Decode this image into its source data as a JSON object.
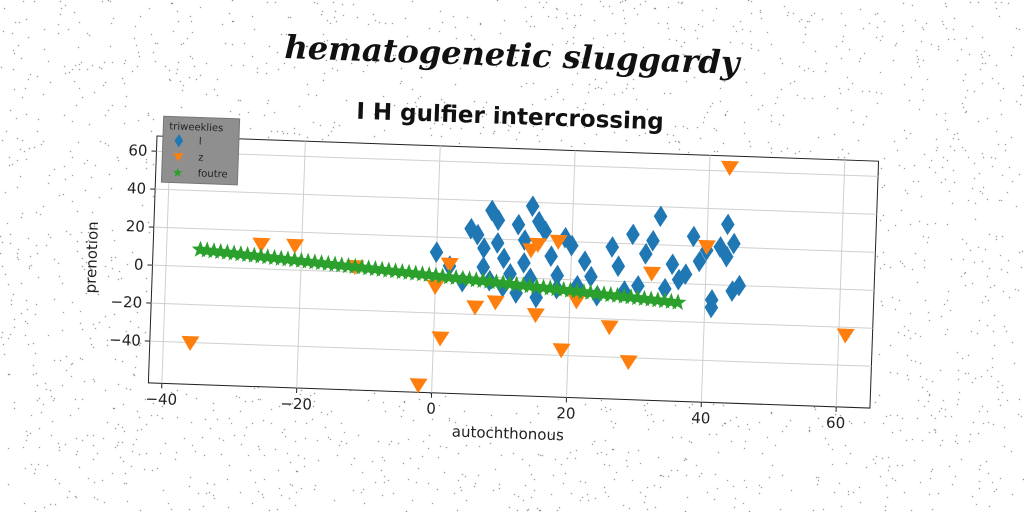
{
  "figure": {
    "suptitle": "hematogenetic sluggardy"
  },
  "chart_data": {
    "type": "scatter",
    "title": "I H gulfier intercrossing",
    "xlabel": "autochthonous",
    "ylabel": "prenotion",
    "xlim": [
      -42,
      65
    ],
    "ylim": [
      -62,
      68
    ],
    "xticks": [
      -40,
      -20,
      0,
      20,
      40,
      60
    ],
    "yticks": [
      -40,
      -20,
      0,
      20,
      40,
      60
    ],
    "xtick_labels": [
      "−40",
      "−20",
      "0",
      "20",
      "40",
      "60"
    ],
    "ytick_labels": [
      "−40",
      "−20",
      "0",
      "20",
      "40",
      "60"
    ],
    "grid": true,
    "legend": {
      "title": "triweeklies",
      "placement": "top-left"
    },
    "series": [
      {
        "name": "l",
        "marker": "diamond",
        "color": "#1f77b4",
        "points": [
          [
            0,
            12
          ],
          [
            2,
            5
          ],
          [
            4,
            -3
          ],
          [
            5,
            25
          ],
          [
            6,
            22
          ],
          [
            7,
            15
          ],
          [
            7,
            5
          ],
          [
            8,
            -2
          ],
          [
            8,
            35
          ],
          [
            9,
            30
          ],
          [
            9,
            18
          ],
          [
            10,
            10
          ],
          [
            10,
            -5
          ],
          [
            11,
            2
          ],
          [
            12,
            28
          ],
          [
            12,
            -8
          ],
          [
            13,
            20
          ],
          [
            13,
            8
          ],
          [
            14,
            38
          ],
          [
            14,
            0
          ],
          [
            15,
            30
          ],
          [
            15,
            -10
          ],
          [
            16,
            25
          ],
          [
            17,
            12
          ],
          [
            18,
            2
          ],
          [
            18,
            -5
          ],
          [
            19,
            22
          ],
          [
            20,
            18
          ],
          [
            21,
            -3
          ],
          [
            22,
            10
          ],
          [
            23,
            2
          ],
          [
            24,
            -8
          ],
          [
            26,
            18
          ],
          [
            27,
            8
          ],
          [
            28,
            -5
          ],
          [
            29,
            25
          ],
          [
            30,
            -2
          ],
          [
            31,
            15
          ],
          [
            32,
            22
          ],
          [
            33,
            35
          ],
          [
            34,
            -3
          ],
          [
            35,
            10
          ],
          [
            36,
            2
          ],
          [
            37,
            5
          ],
          [
            38,
            25
          ],
          [
            39,
            12
          ],
          [
            40,
            18
          ],
          [
            41,
            -8
          ],
          [
            41,
            -12
          ],
          [
            42,
            20
          ],
          [
            43,
            15
          ],
          [
            43,
            32
          ],
          [
            44,
            -3
          ],
          [
            44,
            22
          ],
          [
            45,
            0
          ]
        ]
      },
      {
        "name": "z",
        "marker": "triangle-down",
        "color": "#ff7f0e",
        "points": [
          [
            -36,
            -40
          ],
          [
            -26,
            13
          ],
          [
            -21,
            13
          ],
          [
            -12,
            3
          ],
          [
            -2,
            -58
          ],
          [
            0,
            -6
          ],
          [
            1,
            -33
          ],
          [
            2,
            6
          ],
          [
            6,
            -16
          ],
          [
            9,
            -13
          ],
          [
            14,
            15
          ],
          [
            15,
            18
          ],
          [
            15,
            -19
          ],
          [
            18,
            20
          ],
          [
            19,
            -37
          ],
          [
            21,
            -11
          ],
          [
            26,
            -24
          ],
          [
            29,
            -42
          ],
          [
            32,
            5
          ],
          [
            40,
            20
          ],
          [
            43,
            62
          ],
          [
            61,
            -24
          ]
        ]
      },
      {
        "name": "foutre",
        "marker": "star",
        "color": "#2ca02c",
        "x_range": [
          -35,
          36
        ],
        "y_range": [
          9,
          -10
        ],
        "count": 72
      }
    ]
  }
}
